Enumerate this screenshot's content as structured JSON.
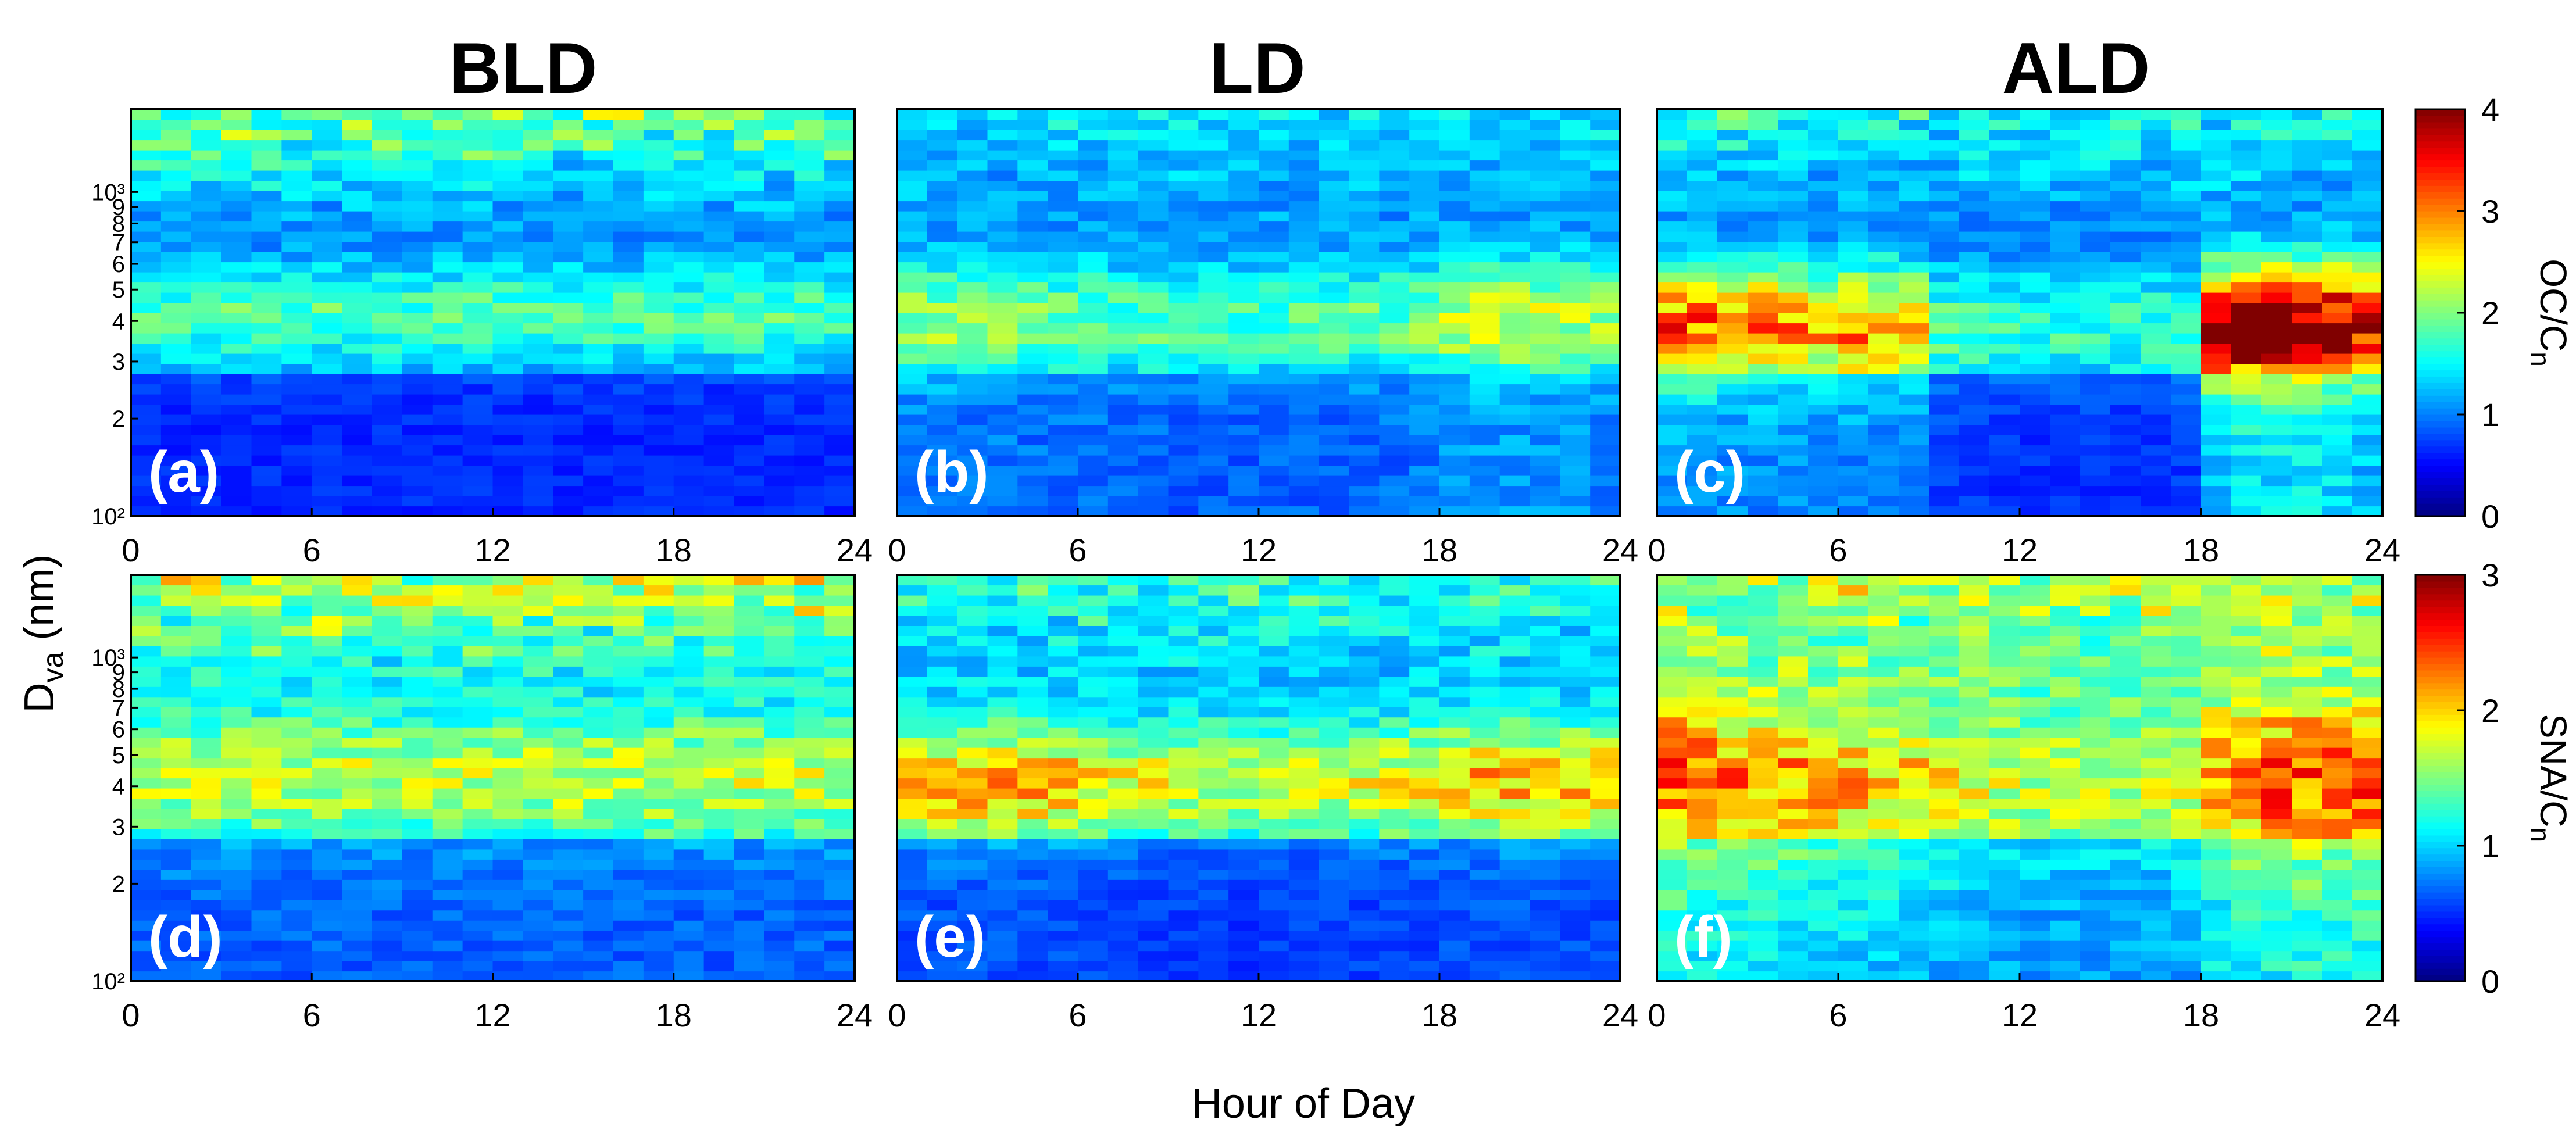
{
  "figure": {
    "column_titles": [
      "BLD",
      "LD",
      "ALD"
    ],
    "ylabel_main": "D",
    "ylabel_sub": "va",
    "ylabel_unit": " (nm)",
    "xlabel": "Hour of Day"
  },
  "chart_data": {
    "type": "heatmap",
    "x": {
      "label": "Hour of Day",
      "range": [
        0,
        24
      ],
      "ticks": [
        0,
        6,
        12,
        18,
        24
      ],
      "bins": 24
    },
    "y": {
      "label": "Dva (nm)",
      "scale": "log",
      "range": [
        100,
        1800
      ],
      "tick_values": [
        100,
        200,
        300,
        400,
        500,
        600,
        700,
        800,
        900,
        1000
      ],
      "tick_labels": [
        "10²",
        "2",
        "3",
        "4",
        "5",
        "6",
        "7",
        "8",
        "9",
        "10³"
      ],
      "bins": 40
    },
    "rows": [
      {
        "variable_main": "OC/C",
        "variable_sub": "n",
        "colorbar": {
          "min": 0,
          "max": 4,
          "ticks": [
            0,
            1,
            2,
            3,
            4
          ],
          "colormap": "jet"
        },
        "panels": [
          {
            "label": "(a)",
            "title": "BLD",
            "peak_diameter_nm": 420,
            "background": 0.9,
            "peak_amplitude": 0.9,
            "peak_width_log": 0.12,
            "large_diameter_value": 2.0,
            "small_diameter_value": 0.4,
            "hourly_scale": [
              1,
              1,
              1,
              1,
              1,
              1,
              1,
              1,
              1,
              1,
              1,
              1,
              1,
              1,
              1,
              1,
              1,
              1,
              1,
              1,
              1,
              1,
              1,
              1
            ]
          },
          {
            "label": "(b)",
            "title": "LD",
            "peak_diameter_nm": 400,
            "background": 1.0,
            "peak_amplitude": 1.0,
            "peak_width_log": 0.13,
            "large_diameter_value": 1.4,
            "small_diameter_value": 0.9,
            "hourly_scale": [
              1.1,
              1.1,
              1,
              1,
              0.95,
              0.95,
              0.9,
              0.85,
              0.85,
              0.8,
              0.8,
              0.8,
              0.8,
              0.85,
              0.85,
              0.9,
              0.9,
              1.0,
              1.25,
              1.3,
              1.3,
              1.25,
              1.2,
              1.1
            ]
          },
          {
            "label": "(c)",
            "title": "ALD",
            "peak_diameter_nm": 380,
            "background": 0.9,
            "peak_amplitude": 1.7,
            "peak_width_log": 0.14,
            "large_diameter_value": 1.6,
            "small_diameter_value": 1.0,
            "hourly_scale": [
              1.3,
              1.3,
              1.2,
              1.2,
              1.15,
              1.1,
              1.2,
              1.1,
              1.0,
              0.55,
              0.5,
              0.45,
              0.45,
              0.45,
              0.45,
              0.45,
              0.45,
              0.5,
              1.7,
              1.9,
              1.9,
              1.9,
              1.8,
              1.6
            ]
          }
        ]
      },
      {
        "variable_main": "SNA/C",
        "variable_sub": "n",
        "colorbar": {
          "min": 0,
          "max": 3,
          "ticks": [
            0,
            1,
            2,
            3
          ],
          "colormap": "jet"
        },
        "panels": [
          {
            "label": "(d)",
            "title": "BLD",
            "peak_diameter_nm": 430,
            "background": 0.8,
            "peak_amplitude": 0.9,
            "peak_width_log": 0.16,
            "large_diameter_value": 1.8,
            "small_diameter_value": 0.5,
            "hourly_scale": [
              1,
              1,
              1,
              1,
              1,
              1,
              1,
              1,
              1,
              1,
              1,
              1,
              1,
              1,
              1,
              1,
              1,
              1,
              1,
              1,
              1,
              1,
              1,
              1
            ]
          },
          {
            "label": "(e)",
            "title": "LD",
            "peak_diameter_nm": 410,
            "background": 0.8,
            "peak_amplitude": 1.1,
            "peak_width_log": 0.14,
            "large_diameter_value": 1.3,
            "small_diameter_value": 0.35,
            "hourly_scale": [
              1.1,
              1.15,
              1.2,
              1.2,
              1.15,
              1.1,
              1.0,
              0.95,
              0.9,
              0.85,
              0.85,
              0.8,
              0.8,
              0.85,
              0.85,
              0.9,
              0.95,
              1.0,
              1.1,
              1.15,
              1.15,
              1.1,
              1.1,
              1.05
            ]
          },
          {
            "label": "(f)",
            "title": "ALD",
            "peak_diameter_nm": 420,
            "background": 1.0,
            "peak_amplitude": 0.95,
            "peak_width_log": 0.22,
            "large_diameter_value": 1.7,
            "small_diameter_value": 0.9,
            "hourly_scale": [
              1.4,
              1.3,
              1.25,
              1.25,
              1.2,
              1.15,
              1.1,
              1.05,
              1.0,
              0.9,
              0.85,
              0.75,
              0.7,
              0.7,
              0.7,
              0.7,
              0.75,
              0.8,
              1.2,
              1.35,
              1.4,
              1.45,
              1.45,
              1.4
            ]
          }
        ]
      }
    ]
  }
}
